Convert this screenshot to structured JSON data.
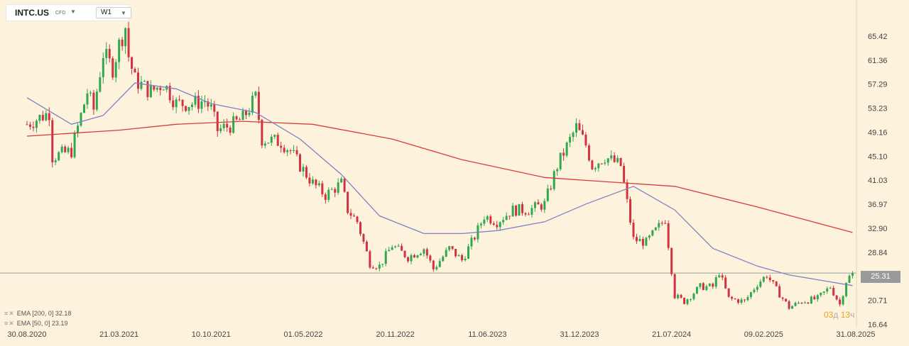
{
  "header": {
    "symbol": "INTC.US",
    "badge": "CFD",
    "timeframe": "W1",
    "symbol_caret_icon": "chevron-down-icon",
    "timeframe_caret_icon": "chevron-down-icon"
  },
  "legend": [
    {
      "label": "EMA [200, 0] 32.18",
      "color": "#d93b3b",
      "icons": "eye-icon, close-icon"
    },
    {
      "label": "EMA [50, 0] 23.19",
      "color": "#7c82c4",
      "icons": "eye-icon, close-icon"
    }
  ],
  "current_price_label": "25.31",
  "countdown": {
    "days": "03",
    "days_unit": "д",
    "hours": "13",
    "hours_unit": "ч"
  },
  "chart_data": {
    "type": "candlestick",
    "interval": "W1",
    "x_tick_labels": [
      "30.08.2020",
      "21.03.2021",
      "10.10.2021",
      "01.05.2022",
      "20.11.2022",
      "11.06.2023",
      "31.12.2023",
      "21.07.2024",
      "09.02.2025",
      "31.08.2025"
    ],
    "y_tick_labels": [
      "65.42",
      "61.36",
      "57.29",
      "53.23",
      "49.16",
      "45.10",
      "41.03",
      "36.97",
      "32.90",
      "28.84",
      "20.71",
      "16.64"
    ],
    "y_tick_values": [
      65.42,
      61.36,
      57.29,
      53.23,
      49.16,
      45.1,
      41.03,
      36.97,
      32.9,
      28.84,
      20.71,
      16.64
    ],
    "x_range": [
      "2020-08-30",
      "2025-08-31"
    ],
    "current_price": 25.31,
    "colors": {
      "up": "#2fa84f",
      "down": "#d0333f",
      "ema200": "#d93b3b",
      "ema50": "#7c82c4",
      "price_line": "#9a9a9a",
      "background": "#fdf3dd"
    },
    "close_path": [
      {
        "t": "2020-08-30",
        "c": 50.5
      },
      {
        "t": "2020-10-18",
        "c": 52.5
      },
      {
        "t": "2020-10-25",
        "c": 45.0
      },
      {
        "t": "2020-12-06",
        "c": 46.0
      },
      {
        "t": "2020-12-20",
        "c": 50.0
      },
      {
        "t": "2021-01-10",
        "c": 56.0
      },
      {
        "t": "2021-01-24",
        "c": 53.0
      },
      {
        "t": "2021-02-14",
        "c": 62.5
      },
      {
        "t": "2021-03-07",
        "c": 60.0
      },
      {
        "t": "2021-03-21",
        "c": 64.0
      },
      {
        "t": "2021-04-04",
        "c": 67.0
      },
      {
        "t": "2021-04-11",
        "c": 62.0
      },
      {
        "t": "2021-04-25",
        "c": 58.0
      },
      {
        "t": "2021-05-30",
        "c": 56.0
      },
      {
        "t": "2021-06-27",
        "c": 57.5
      },
      {
        "t": "2021-07-25",
        "c": 54.0
      },
      {
        "t": "2021-08-29",
        "c": 54.0
      },
      {
        "t": "2021-09-26",
        "c": 54.5
      },
      {
        "t": "2021-10-10",
        "c": 53.0
      },
      {
        "t": "2021-10-24",
        "c": 49.5
      },
      {
        "t": "2021-11-28",
        "c": 50.5
      },
      {
        "t": "2021-12-19",
        "c": 51.5
      },
      {
        "t": "2022-01-16",
        "c": 55.0
      },
      {
        "t": "2022-01-30",
        "c": 48.0
      },
      {
        "t": "2022-03-13",
        "c": 47.5
      },
      {
        "t": "2022-04-03",
        "c": 46.0
      },
      {
        "t": "2022-04-24",
        "c": 43.5
      },
      {
        "t": "2022-05-22",
        "c": 40.5
      },
      {
        "t": "2022-06-19",
        "c": 38.5
      },
      {
        "t": "2022-07-24",
        "c": 40.5
      },
      {
        "t": "2022-08-07",
        "c": 36.0
      },
      {
        "t": "2022-08-28",
        "c": 34.0
      },
      {
        "t": "2022-09-25",
        "c": 27.0
      },
      {
        "t": "2022-10-16",
        "c": 26.5
      },
      {
        "t": "2022-11-13",
        "c": 30.0
      },
      {
        "t": "2022-12-18",
        "c": 28.0
      },
      {
        "t": "2023-01-22",
        "c": 29.5
      },
      {
        "t": "2023-02-12",
        "c": 26.0
      },
      {
        "t": "2023-03-19",
        "c": 29.5
      },
      {
        "t": "2023-04-16",
        "c": 27.5
      },
      {
        "t": "2023-05-14",
        "c": 31.5
      },
      {
        "t": "2023-06-04",
        "c": 35.0
      },
      {
        "t": "2023-07-02",
        "c": 34.0
      },
      {
        "t": "2023-08-06",
        "c": 36.0
      },
      {
        "t": "2023-09-10",
        "c": 36.0
      },
      {
        "t": "2023-10-15",
        "c": 37.0
      },
      {
        "t": "2023-11-12",
        "c": 43.5
      },
      {
        "t": "2023-12-24",
        "c": 50.0
      },
      {
        "t": "2024-01-14",
        "c": 47.0
      },
      {
        "t": "2024-01-28",
        "c": 43.5
      },
      {
        "t": "2024-02-25",
        "c": 45.0
      },
      {
        "t": "2024-03-31",
        "c": 43.5
      },
      {
        "t": "2024-04-28",
        "c": 31.0
      },
      {
        "t": "2024-05-26",
        "c": 30.5
      },
      {
        "t": "2024-07-07",
        "c": 34.5
      },
      {
        "t": "2024-07-28",
        "c": 21.5
      },
      {
        "t": "2024-08-18",
        "c": 20.5
      },
      {
        "t": "2024-09-22",
        "c": 23.0
      },
      {
        "t": "2024-10-20",
        "c": 23.0
      },
      {
        "t": "2024-11-03",
        "c": 25.5
      },
      {
        "t": "2024-11-24",
        "c": 21.0
      },
      {
        "t": "2024-12-29",
        "c": 20.5
      },
      {
        "t": "2025-01-26",
        "c": 23.5
      },
      {
        "t": "2025-02-16",
        "c": 25.0
      },
      {
        "t": "2025-03-09",
        "c": 22.5
      },
      {
        "t": "2025-04-06",
        "c": 19.5
      },
      {
        "t": "2025-05-04",
        "c": 20.5
      },
      {
        "t": "2025-06-08",
        "c": 21.0
      },
      {
        "t": "2025-07-06",
        "c": 23.0
      },
      {
        "t": "2025-07-27",
        "c": 20.0
      },
      {
        "t": "2025-08-10",
        "c": 24.0
      },
      {
        "t": "2025-08-24",
        "c": 25.31
      }
    ],
    "ema50": [
      {
        "t": "2020-08-30",
        "v": 55.0
      },
      {
        "t": "2020-12-06",
        "v": 50.5
      },
      {
        "t": "2021-02-14",
        "v": 52.0
      },
      {
        "t": "2021-04-25",
        "v": 57.5
      },
      {
        "t": "2021-07-25",
        "v": 56.5
      },
      {
        "t": "2021-10-10",
        "v": 54.0
      },
      {
        "t": "2022-01-16",
        "v": 52.5
      },
      {
        "t": "2022-04-24",
        "v": 48.0
      },
      {
        "t": "2022-07-24",
        "v": 42.0
      },
      {
        "t": "2022-10-16",
        "v": 35.0
      },
      {
        "t": "2023-01-22",
        "v": 32.0
      },
      {
        "t": "2023-04-16",
        "v": 32.0
      },
      {
        "t": "2023-07-02",
        "v": 32.5
      },
      {
        "t": "2023-10-15",
        "v": 34.0
      },
      {
        "t": "2024-01-14",
        "v": 37.0
      },
      {
        "t": "2024-04-28",
        "v": 40.0
      },
      {
        "t": "2024-07-28",
        "v": 36.0
      },
      {
        "t": "2024-10-20",
        "v": 29.5
      },
      {
        "t": "2025-01-26",
        "v": 26.5
      },
      {
        "t": "2025-04-06",
        "v": 25.0
      },
      {
        "t": "2025-08-24",
        "v": 23.19
      }
    ],
    "ema200": [
      {
        "t": "2020-08-30",
        "v": 48.5
      },
      {
        "t": "2021-03-21",
        "v": 49.5
      },
      {
        "t": "2021-07-25",
        "v": 50.5
      },
      {
        "t": "2021-12-19",
        "v": 51.0
      },
      {
        "t": "2022-05-22",
        "v": 50.5
      },
      {
        "t": "2022-11-13",
        "v": 48.0
      },
      {
        "t": "2023-04-16",
        "v": 44.5
      },
      {
        "t": "2023-10-15",
        "v": 41.5
      },
      {
        "t": "2024-01-14",
        "v": 41.0
      },
      {
        "t": "2024-07-28",
        "v": 40.0
      },
      {
        "t": "2025-01-26",
        "v": 36.5
      },
      {
        "t": "2025-08-24",
        "v": 32.18
      }
    ]
  }
}
